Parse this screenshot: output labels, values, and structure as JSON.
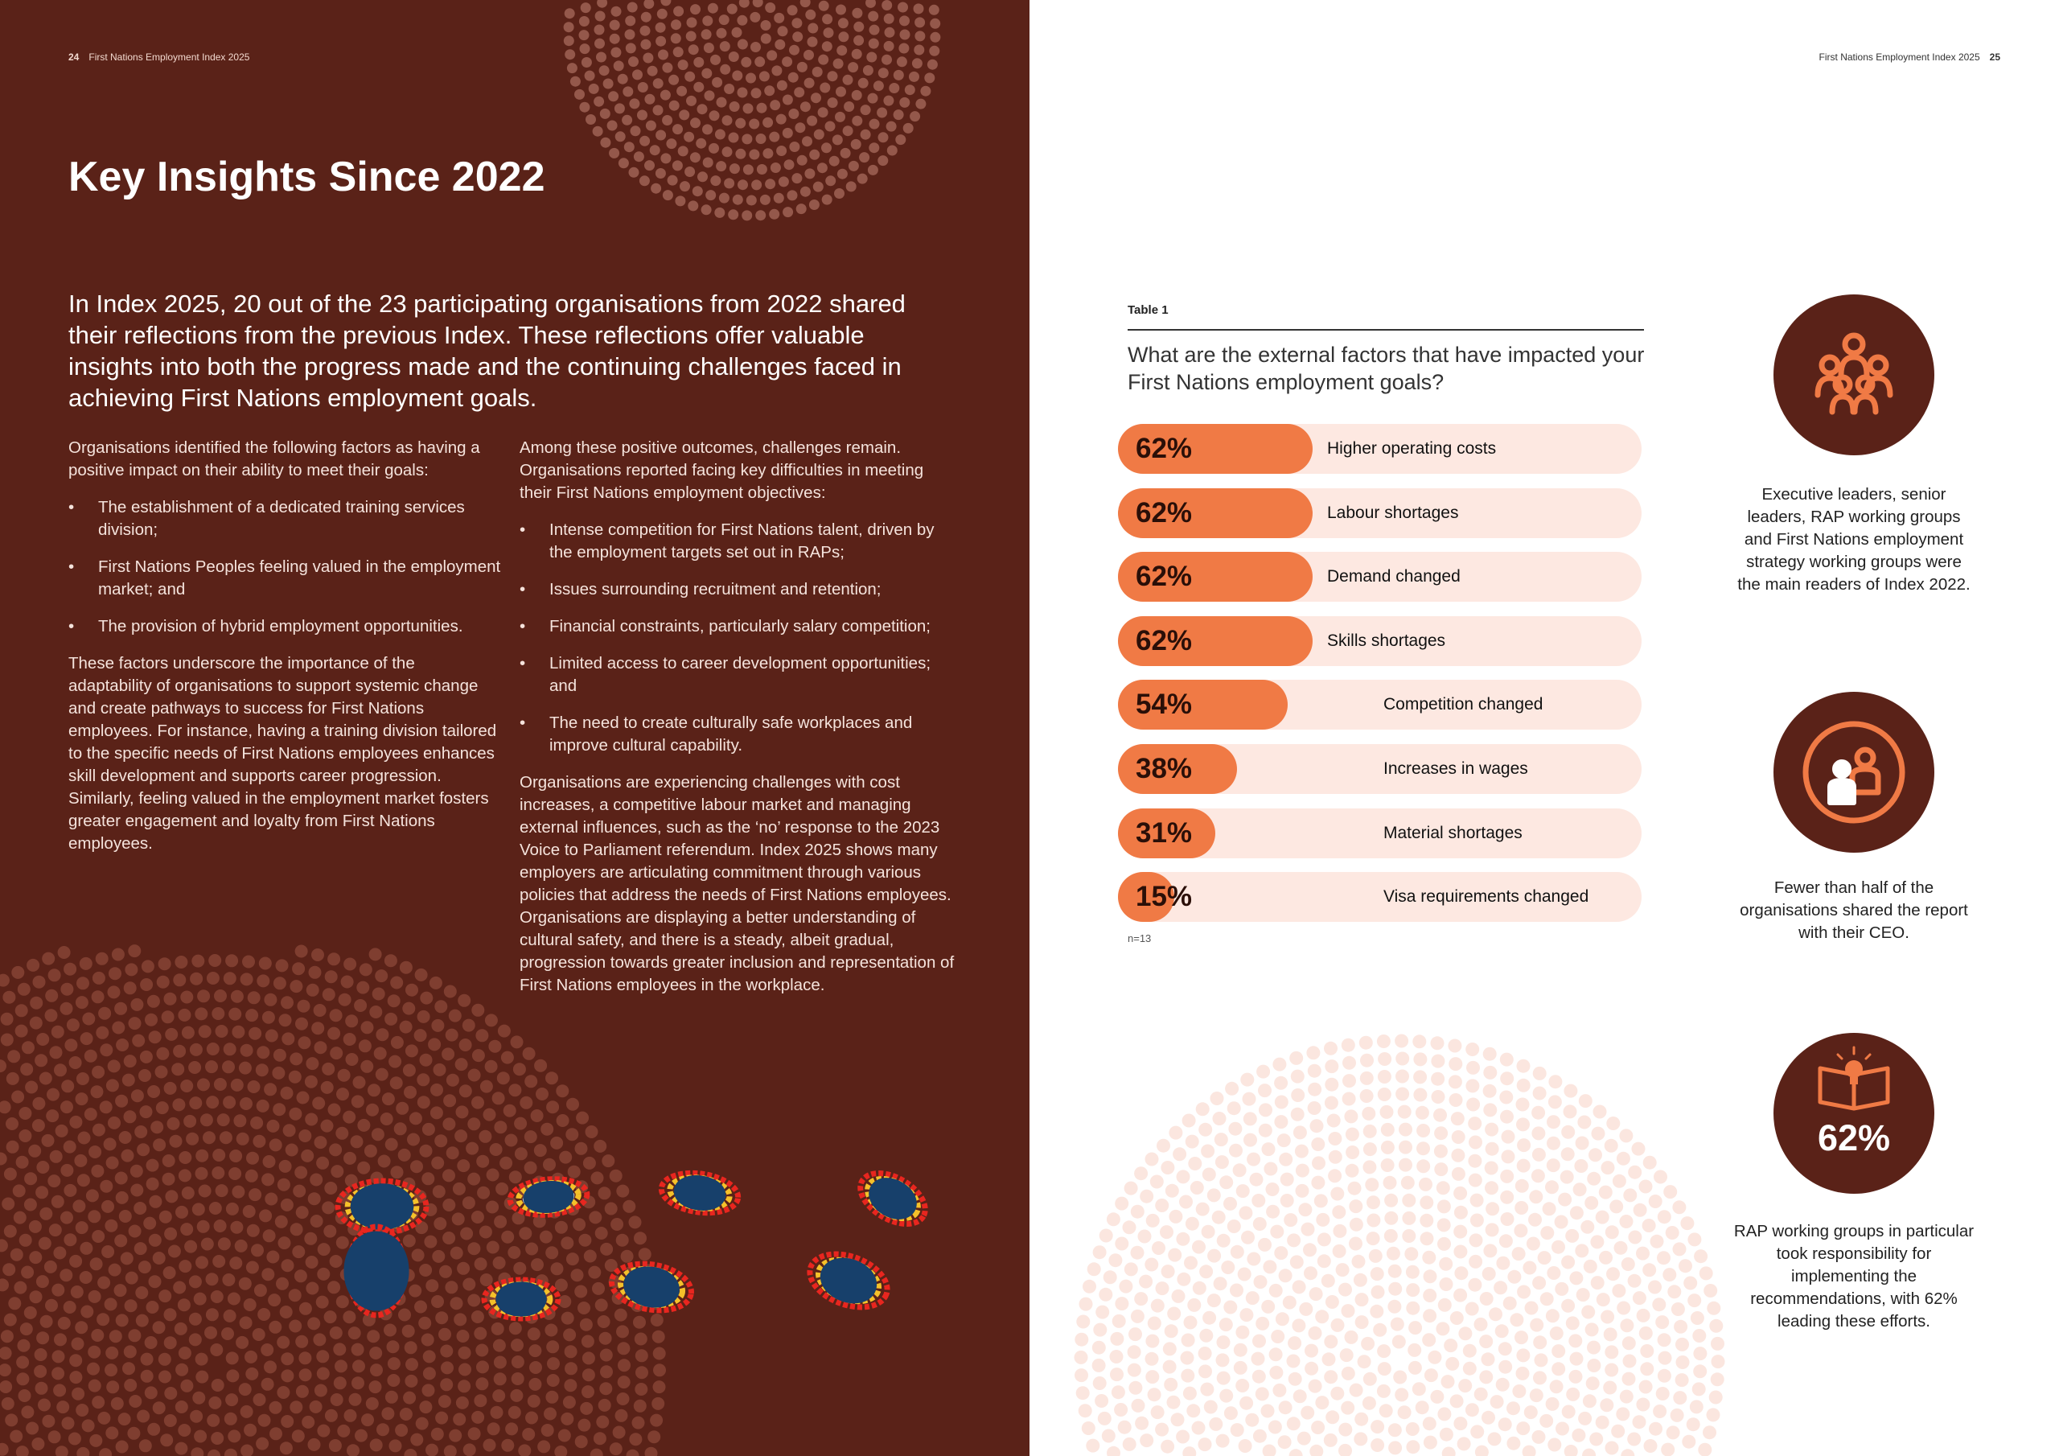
{
  "left_page": {
    "page_number": "24",
    "running_title": "First Nations Employment Index 2025",
    "title": "Key Insights Since 2022",
    "intro": "In Index 2025, 20 out of the 23 participating organisations from 2022 shared their reflections from the previous Index. These reflections offer valuable insights into both the progress made and the continuing challenges faced in achieving First Nations employment goals.",
    "col1": {
      "lead": "Organisations identified the following factors as having a positive impact on their ability to meet their goals:",
      "bullets": [
        "The establishment of a dedicated training services division;",
        "First Nations Peoples feeling valued in the employment market; and",
        "The provision of hybrid employment opportunities."
      ],
      "closing": "These factors underscore the importance of the adaptability of organisations to support systemic change and create pathways to success for First Nations employees. For instance, having a training division tailored to the specific needs of First Nations employees enhances skill development and supports career progression. Similarly, feeling valued in the employment market fosters greater engagement and loyalty from First Nations employees."
    },
    "col2": {
      "lead": "Among these positive outcomes, challenges remain. Organisations reported facing key difficulties in meeting their First Nations employment objectives:",
      "bullets": [
        "Intense competition for First Nations talent, driven by the employment targets set out in RAPs;",
        "Issues surrounding recruitment and retention;",
        "Financial constraints, particularly salary competition;",
        "Limited access to career development opportunities; and",
        "The need to create culturally safe workplaces and improve cultural capability."
      ],
      "closing": "Organisations are experiencing challenges with cost increases, a competitive labour market and managing external influences, such as the ‘no’ response to the 2023 Voice to Parliament referendum. Index 2025 shows many employers are articulating commitment through various policies that address the needs of First Nations employees. Organisations are displaying a better understanding of cultural safety, and there is a steady, albeit gradual, progression towards greater inclusion and representation of First Nations employees in the workplace."
    },
    "bullet_glyph": "•"
  },
  "right_page": {
    "page_number": "25",
    "running_title": "First Nations Employment Index 2025",
    "table_label": "Table 1",
    "question": "What are the external factors that have impacted your First Nations employment goals?",
    "n_note": "n=13",
    "stats": [
      {
        "icon": "group-leaders-icon",
        "value": "",
        "text": "Executive leaders, senior leaders, RAP working groups and First Nations employment strategy working groups were the main readers of Index 2022."
      },
      {
        "icon": "report-share-icon",
        "value": "",
        "text": "Fewer than half of the organisations shared the report with their CEO."
      },
      {
        "icon": "book-lightbulb-icon",
        "value": "62%",
        "text": "RAP working groups in particular took responsibility for implementing the recommendations, with 62% leading these efforts."
      }
    ]
  },
  "colors": {
    "maroon": "#5a2218",
    "orange": "#f07a45",
    "track": "#fde8e1"
  },
  "chart_data": {
    "type": "bar",
    "orientation": "horizontal",
    "title": "What are the external factors that have impacted your First Nations employment goals?",
    "categories": [
      "Higher operating costs",
      "Labour shortages",
      "Demand changed",
      "Skills shortages",
      "Competition changed",
      "Increases in wages",
      "Material shortages",
      "Visa requirements changed"
    ],
    "values": [
      62,
      62,
      62,
      62,
      54,
      38,
      31,
      15
    ],
    "labels": [
      "62%",
      "62%",
      "62%",
      "62%",
      "54%",
      "38%",
      "31%",
      "15%"
    ],
    "xlim": [
      0,
      100
    ],
    "unit": "%",
    "grid": false
  }
}
